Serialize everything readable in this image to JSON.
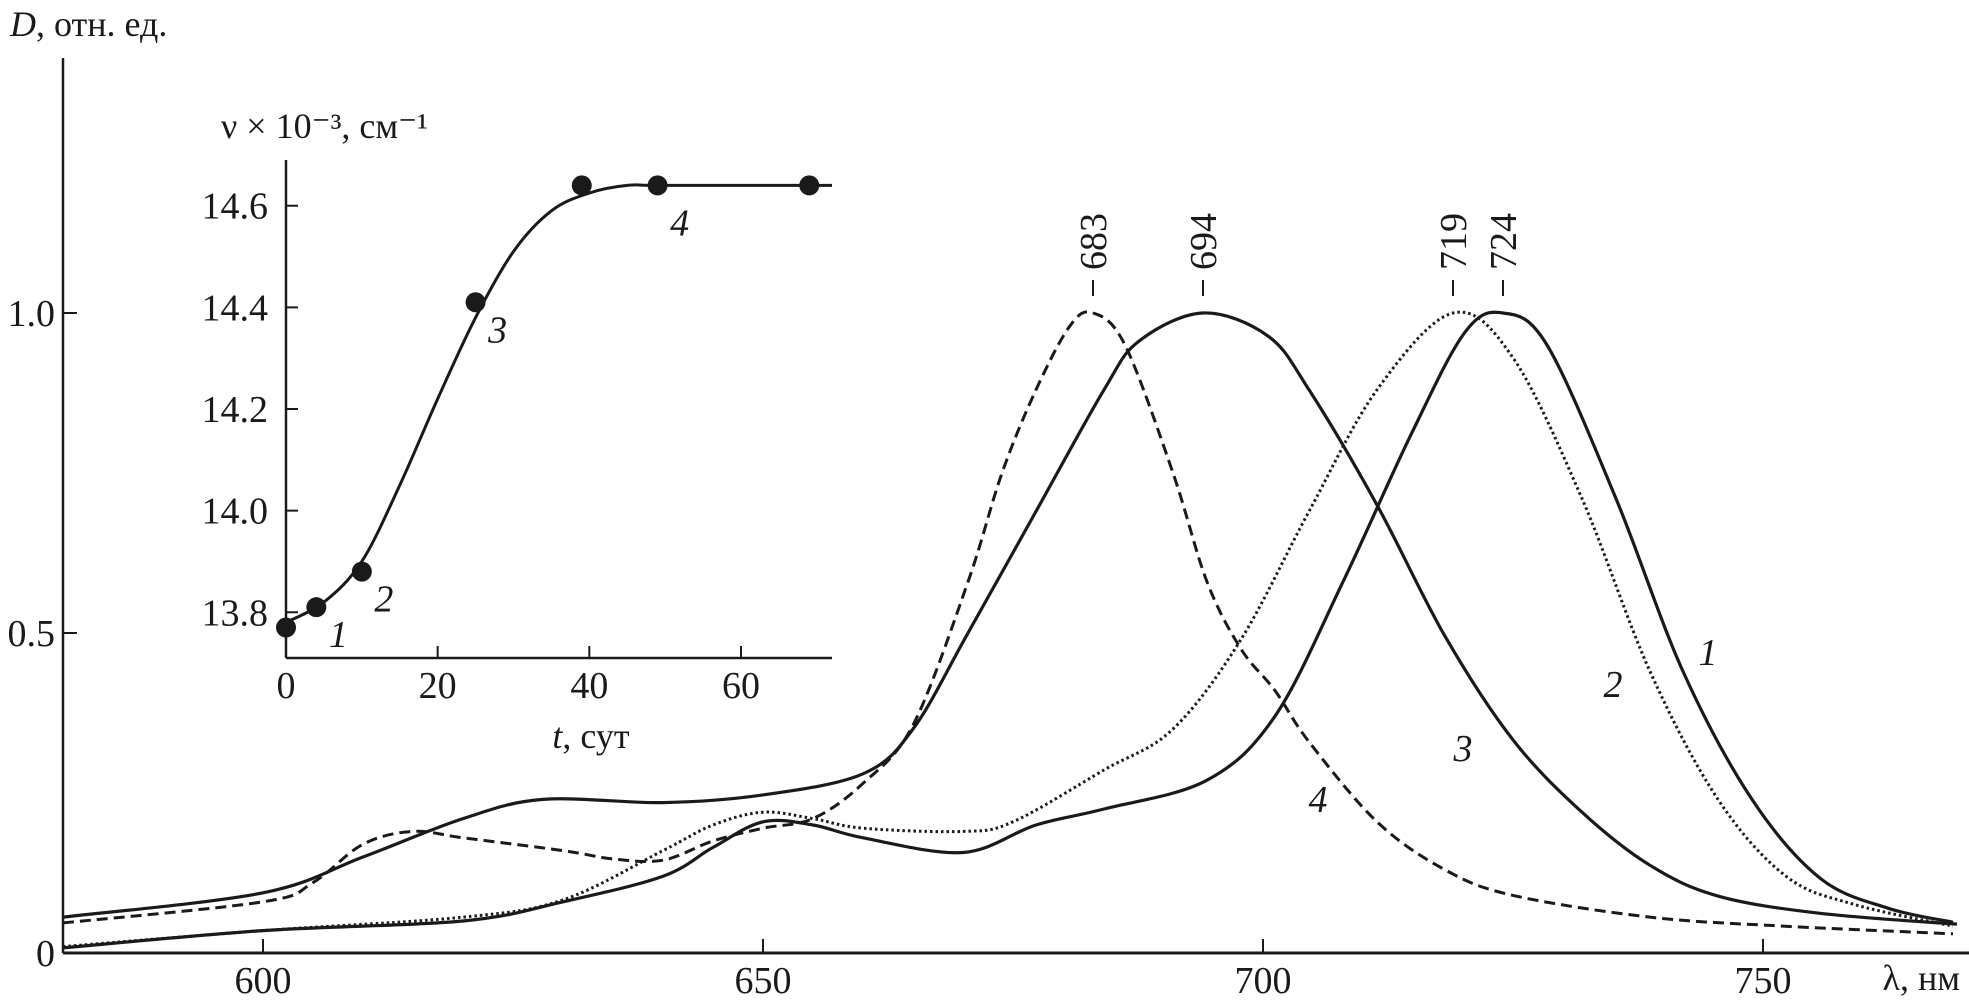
{
  "chart_data": [
    {
      "type": "line",
      "ylabel": "D, отн. ед.",
      "ylabel_var": "D",
      "ylabel_unit": ", отн. ед.",
      "xlabel": "λ, нм",
      "xlim": [
        580,
        770
      ],
      "ylim": [
        0,
        1.4
      ],
      "xticks": [
        600,
        650,
        700,
        750
      ],
      "xtick_labels": [
        "600",
        "650",
        "700",
        "750"
      ],
      "yticks": [
        0,
        0.5,
        1.0
      ],
      "ytick_labels": [
        "0",
        "0.5",
        "1.0"
      ],
      "grid": false,
      "colors": {
        "line": "#1a1a1a"
      },
      "peak_labels": [
        {
          "x": 683,
          "text": "683"
        },
        {
          "x": 694,
          "text": "694"
        },
        {
          "x": 719,
          "text": "719"
        },
        {
          "x": 724,
          "text": "724"
        }
      ],
      "series": [
        {
          "label": "1",
          "style": "solid",
          "peak": 724,
          "x": [
            580,
            600,
            620,
            630,
            640,
            645,
            650,
            655,
            660,
            670,
            677.3,
            684.1,
            694.4,
            701.2,
            708,
            714.8,
            720.2,
            724,
            728.4,
            735.3,
            742,
            748.9,
            755.7,
            762.5,
            769
          ],
          "y": [
            0.008,
            0.035,
            0.05,
            0.08,
            0.12,
            0.165,
            0.205,
            0.2,
            0.18,
            0.157,
            0.2,
            0.225,
            0.27,
            0.37,
            0.58,
            0.81,
            0.97,
            1.0,
            0.95,
            0.71,
            0.44,
            0.24,
            0.117,
            0.07,
            0.048
          ]
        },
        {
          "label": "2",
          "style": "dotted",
          "peak": 719,
          "x": [
            580,
            600,
            620,
            630,
            640,
            645,
            650,
            655,
            660,
            670,
            675,
            684.1,
            691,
            697.8,
            704.6,
            711.4,
            719,
            725,
            731.9,
            738.7,
            745.5,
            752.3,
            759.1,
            769
          ],
          "y": [
            0.01,
            0.035,
            0.056,
            0.083,
            0.16,
            0.2,
            0.22,
            0.21,
            0.195,
            0.19,
            0.205,
            0.286,
            0.35,
            0.49,
            0.69,
            0.88,
            1.0,
            0.93,
            0.71,
            0.44,
            0.24,
            0.12,
            0.076,
            0.042
          ]
        },
        {
          "label": "3",
          "style": "solid",
          "peak": 694,
          "x": [
            580,
            600,
            610,
            620,
            628,
            640,
            650,
            660,
            665,
            670.5,
            677.3,
            684.1,
            687.6,
            694,
            700.5,
            704.6,
            711.4,
            718.2,
            725,
            731.9,
            738.7,
            745.5,
            755.7,
            769.4
          ],
          "y": [
            0.056,
            0.094,
            0.15,
            0.21,
            0.24,
            0.235,
            0.247,
            0.28,
            0.35,
            0.5,
            0.69,
            0.88,
            0.956,
            1.0,
            0.964,
            0.88,
            0.7,
            0.495,
            0.333,
            0.22,
            0.137,
            0.089,
            0.062,
            0.045
          ]
        },
        {
          "label": "4",
          "style": "dashed",
          "peak": 683,
          "x": [
            580,
            600,
            605,
            610,
            615,
            620,
            630,
            635,
            640,
            645,
            650,
            655,
            660,
            665,
            670.5,
            673.9,
            677.3,
            680.7,
            683,
            686.2,
            691,
            694.4,
            697.8,
            701.2,
            704.6,
            711.4,
            718.2,
            725,
            738.7,
            752,
            769
          ],
          "y": [
            0.047,
            0.08,
            0.11,
            0.17,
            0.19,
            0.18,
            0.16,
            0.147,
            0.145,
            0.175,
            0.195,
            0.21,
            0.265,
            0.356,
            0.58,
            0.75,
            0.88,
            0.98,
            1.0,
            0.95,
            0.75,
            0.58,
            0.475,
            0.41,
            0.33,
            0.205,
            0.13,
            0.09,
            0.056,
            0.042,
            0.03
          ]
        }
      ]
    },
    {
      "type": "scatter",
      "inset": true,
      "ylabel": "ν × 10⁻³, см⁻¹",
      "xlabel_var": "t",
      "xlabel_unit": ", сут",
      "xlim": [
        0,
        72
      ],
      "ylim": [
        13.71,
        14.69
      ],
      "xticks": [
        0,
        20,
        40,
        60
      ],
      "xtick_labels": [
        "0",
        "20",
        "40",
        "60"
      ],
      "yticks": [
        13.8,
        14.0,
        14.2,
        14.4,
        14.6
      ],
      "ytick_labels": [
        "13.8",
        "14.0",
        "14.2",
        "14.4",
        "14.6"
      ],
      "grid": false,
      "points": {
        "x": [
          0,
          4,
          10,
          25,
          39,
          49,
          69
        ],
        "y": [
          13.77,
          13.81,
          13.88,
          14.41,
          14.64,
          14.64,
          14.64
        ]
      },
      "point_labels": [
        {
          "x": 4,
          "text": "1"
        },
        {
          "x": 10,
          "text": "2"
        },
        {
          "x": 25,
          "text": "3"
        },
        {
          "x": 49,
          "text": "4"
        }
      ],
      "fit_curve": {
        "x": [
          0,
          5,
          10,
          15,
          20,
          25,
          30,
          35,
          40,
          45,
          50,
          72
        ],
        "y": [
          13.78,
          13.82,
          13.9,
          14.05,
          14.22,
          14.38,
          14.51,
          14.59,
          14.625,
          14.64,
          14.64,
          14.64
        ]
      }
    }
  ]
}
